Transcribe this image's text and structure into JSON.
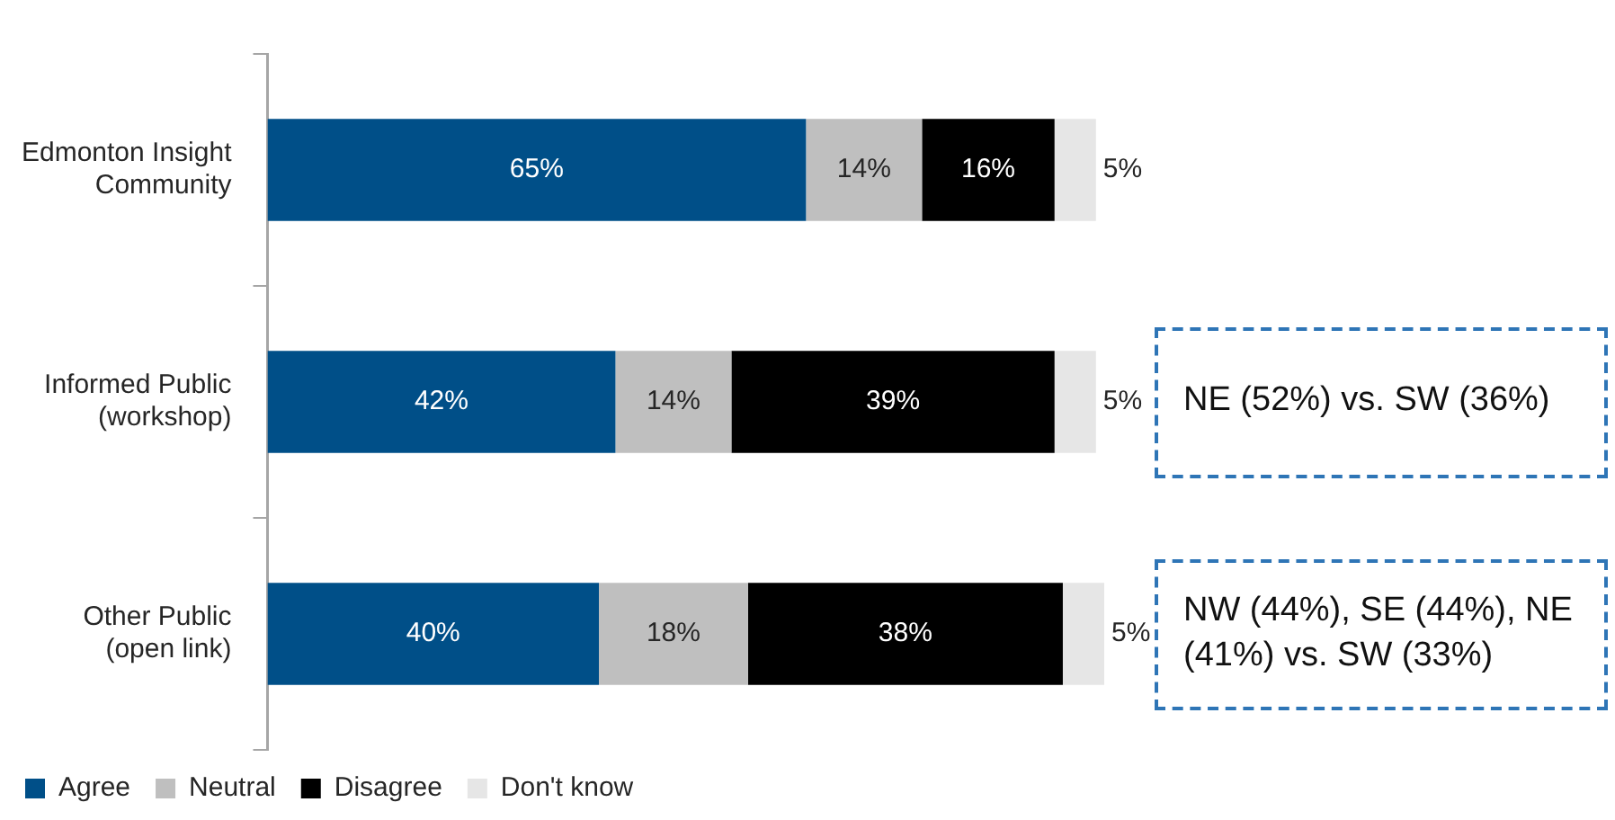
{
  "chart_data": {
    "type": "bar",
    "orientation": "horizontal",
    "stacked": true,
    "categories": [
      "Edmonton Insight Community",
      "Informed Public (workshop)",
      "Other Public (open link)"
    ],
    "series": [
      {
        "name": "Agree",
        "color": "#004f88",
        "values": [
          65,
          42,
          40
        ],
        "value_labels": [
          "65%",
          "42%",
          "40%"
        ]
      },
      {
        "name": "Neutral",
        "color": "#bfbfbf",
        "values": [
          14,
          14,
          18
        ],
        "value_labels": [
          "14%",
          "14%",
          "18%"
        ]
      },
      {
        "name": "Disagree",
        "color": "#000000",
        "values": [
          16,
          39,
          38
        ],
        "value_labels": [
          "16%",
          "39%",
          "38%"
        ]
      },
      {
        "name": "Don't know",
        "color": "#e6e6e6",
        "values": [
          5,
          5,
          5
        ],
        "value_labels": [
          "5%",
          "5%",
          "5%"
        ]
      }
    ],
    "tick_labels": "y",
    "legend": "bottom",
    "annotations": [
      "NE (52%) vs. SW (36%)",
      "NW (44%), SE (44%), NE (41%) vs. SW (33%)"
    ]
  }
}
